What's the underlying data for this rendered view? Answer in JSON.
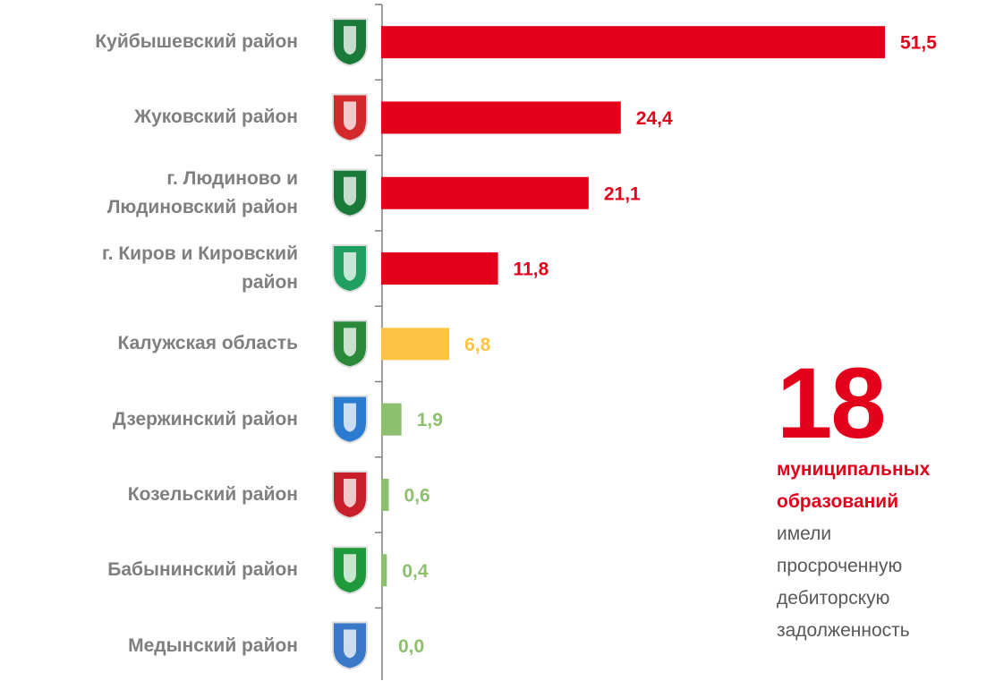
{
  "chart_data": {
    "type": "bar",
    "orientation": "horizontal",
    "categories": [
      "Куйбышевский район",
      "Жуковский район",
      "г. Людиново и\nЛюдиновский район",
      "г. Киров и Кировский\nрайон",
      "Калужская область",
      "Дзержинский район",
      "Козельский район",
      "Бабынинский район",
      "Медынский район"
    ],
    "values": [
      51.5,
      24.4,
      21.1,
      11.8,
      6.8,
      1.9,
      0.6,
      0.4,
      0.0
    ],
    "value_labels": [
      "51,5",
      "24,4",
      "21,1",
      "11,8",
      "6,8",
      "1,9",
      "0,6",
      "0,4",
      "0,0"
    ],
    "colors": [
      "#e3001b",
      "#e3001b",
      "#e3001b",
      "#e3001b",
      "#fec343",
      "#8dc06e",
      "#8dc06e",
      "#8dc06e",
      "#8dc06e"
    ],
    "annotation": {
      "number": "18",
      "highlight_lines": [
        "муниципальных",
        "образований"
      ],
      "lines": [
        "имели",
        "просроченную",
        "дебиторскую",
        "задолженность"
      ]
    }
  }
}
